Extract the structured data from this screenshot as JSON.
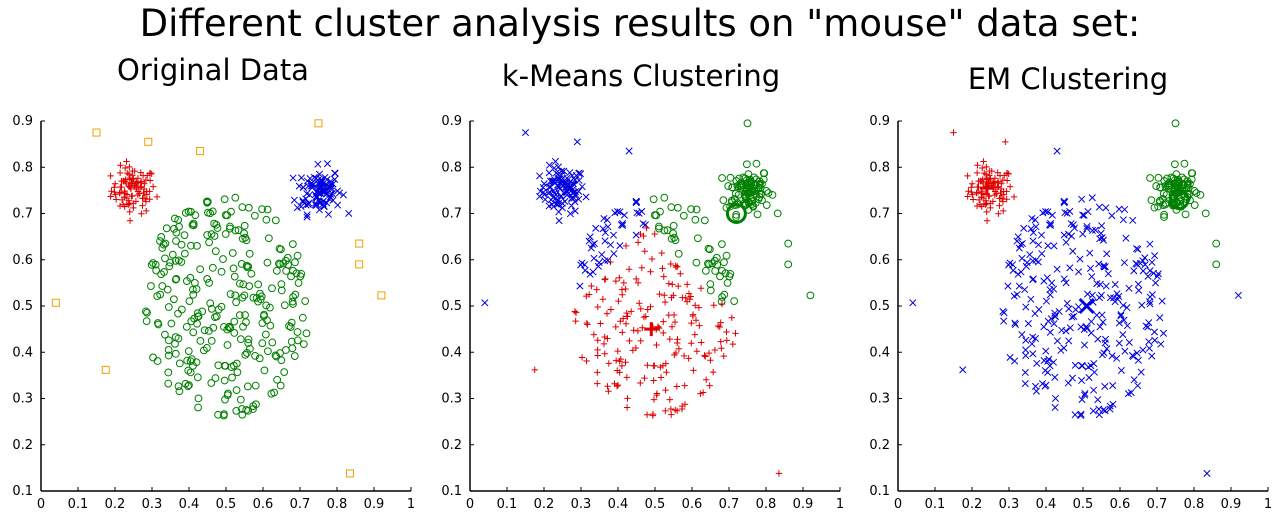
{
  "title": "Different cluster analysis results on \"mouse\" data set:",
  "colors": {
    "red": "#e00000",
    "green": "#008000",
    "blue": "#0000e0",
    "orange": "#f0a000"
  },
  "chart_data": [
    {
      "type": "scatter",
      "title": "Original Data",
      "xlabel": "",
      "ylabel": "",
      "xlim": [
        0,
        1
      ],
      "ylim": [
        0.1,
        0.9
      ],
      "x_ticks": [
        "0",
        "0.1",
        "0.2",
        "0.3",
        "0.4",
        "0.5",
        "0.6",
        "0.7",
        "0.8",
        "0.9",
        "1"
      ],
      "y_ticks": [
        "0.1",
        "0.2",
        "0.3",
        "0.4",
        "0.5",
        "0.6",
        "0.7",
        "0.8",
        "0.9"
      ],
      "grid": false,
      "series": [
        {
          "marker": "plus",
          "color": "red",
          "cluster": "left-ear",
          "center": [
            0.25,
            0.75
          ],
          "spread": 0.05,
          "count": 100
        },
        {
          "marker": "cross",
          "color": "blue",
          "cluster": "right-ear",
          "center": [
            0.75,
            0.75
          ],
          "spread": 0.05,
          "count": 100
        },
        {
          "marker": "circle",
          "color": "green",
          "cluster": "head",
          "center": [
            0.5,
            0.5
          ],
          "spread": 0.24,
          "count": 290
        },
        {
          "marker": "square",
          "color": "orange",
          "cluster": "noise",
          "points": [
            [
              0.15,
              0.875
            ],
            [
              0.29,
              0.855
            ],
            [
              0.43,
              0.835
            ],
            [
              0.75,
              0.895
            ],
            [
              0.86,
              0.635
            ],
            [
              0.86,
              0.59
            ],
            [
              0.92,
              0.523
            ],
            [
              0.04,
              0.507
            ],
            [
              0.175,
              0.362
            ],
            [
              0.835,
              0.138
            ]
          ]
        }
      ]
    },
    {
      "type": "scatter",
      "title": "k-Means Clustering",
      "xlabel": "",
      "ylabel": "",
      "xlim": [
        0,
        1
      ],
      "ylim": [
        0.1,
        0.9
      ],
      "x_ticks": [
        "0",
        "0.1",
        "0.2",
        "0.3",
        "0.4",
        "0.5",
        "0.6",
        "0.7",
        "0.8",
        "0.9",
        "1"
      ],
      "y_ticks": [
        "0.1",
        "0.2",
        "0.3",
        "0.4",
        "0.5",
        "0.6",
        "0.7",
        "0.8",
        "0.9"
      ],
      "grid": false,
      "centroids": [
        [
          0.27,
          0.755
        ],
        [
          0.72,
          0.7
        ],
        [
          0.49,
          0.45
        ]
      ],
      "series": [
        {
          "marker": "cross",
          "color": "blue",
          "cluster": "left-ear"
        },
        {
          "marker": "circle",
          "color": "green",
          "cluster": "right-ear"
        },
        {
          "marker": "plus",
          "color": "red",
          "cluster": "head"
        }
      ]
    },
    {
      "type": "scatter",
      "title": "EM Clustering",
      "xlabel": "",
      "ylabel": "",
      "xlim": [
        0,
        1
      ],
      "ylim": [
        0.1,
        0.9
      ],
      "x_ticks": [
        "0",
        "0.1",
        "0.2",
        "0.3",
        "0.4",
        "0.5",
        "0.6",
        "0.7",
        "0.8",
        "0.9",
        "1"
      ],
      "y_ticks": [
        "0.1",
        "0.2",
        "0.3",
        "0.4",
        "0.5",
        "0.6",
        "0.7",
        "0.8",
        "0.9"
      ],
      "grid": false,
      "centroids": [
        [
          0.24,
          0.755
        ],
        [
          0.76,
          0.73
        ],
        [
          0.51,
          0.5
        ]
      ],
      "series": [
        {
          "marker": "plus",
          "color": "red",
          "cluster": "left-ear"
        },
        {
          "marker": "circle",
          "color": "green",
          "cluster": "right-ear"
        },
        {
          "marker": "cross",
          "color": "blue",
          "cluster": "head"
        }
      ]
    }
  ]
}
